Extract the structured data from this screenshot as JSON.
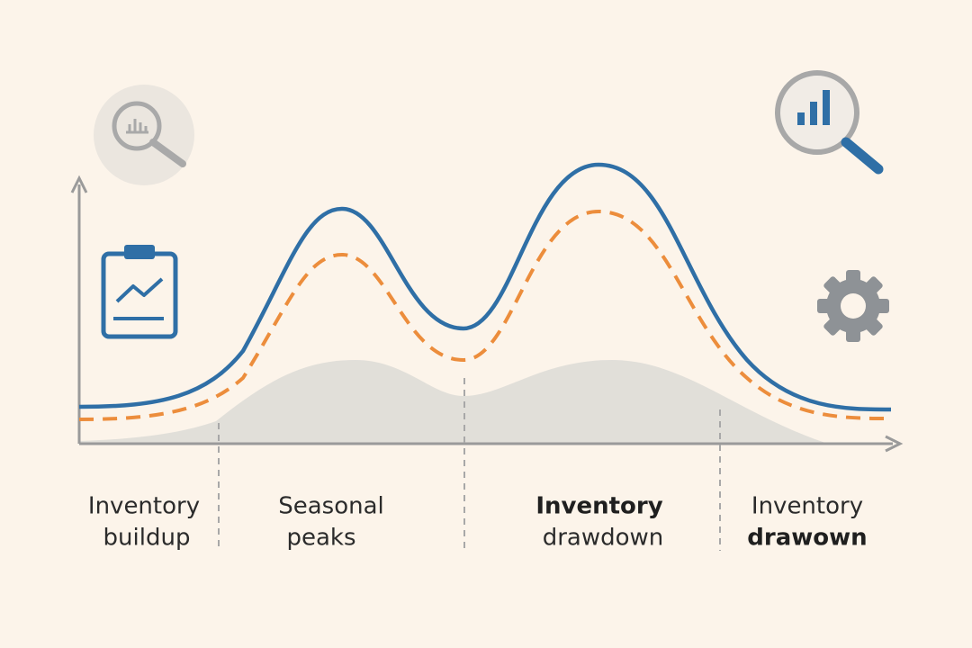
{
  "phases": [
    {
      "lines": [
        "Inventory",
        "buildup"
      ]
    },
    {
      "lines": [
        "Seasonal",
        "peaks"
      ]
    },
    {
      "lines": [
        "Inventory",
        "drawdown"
      ]
    },
    {
      "lines": [
        "Inventory",
        "drawown"
      ]
    }
  ]
}
